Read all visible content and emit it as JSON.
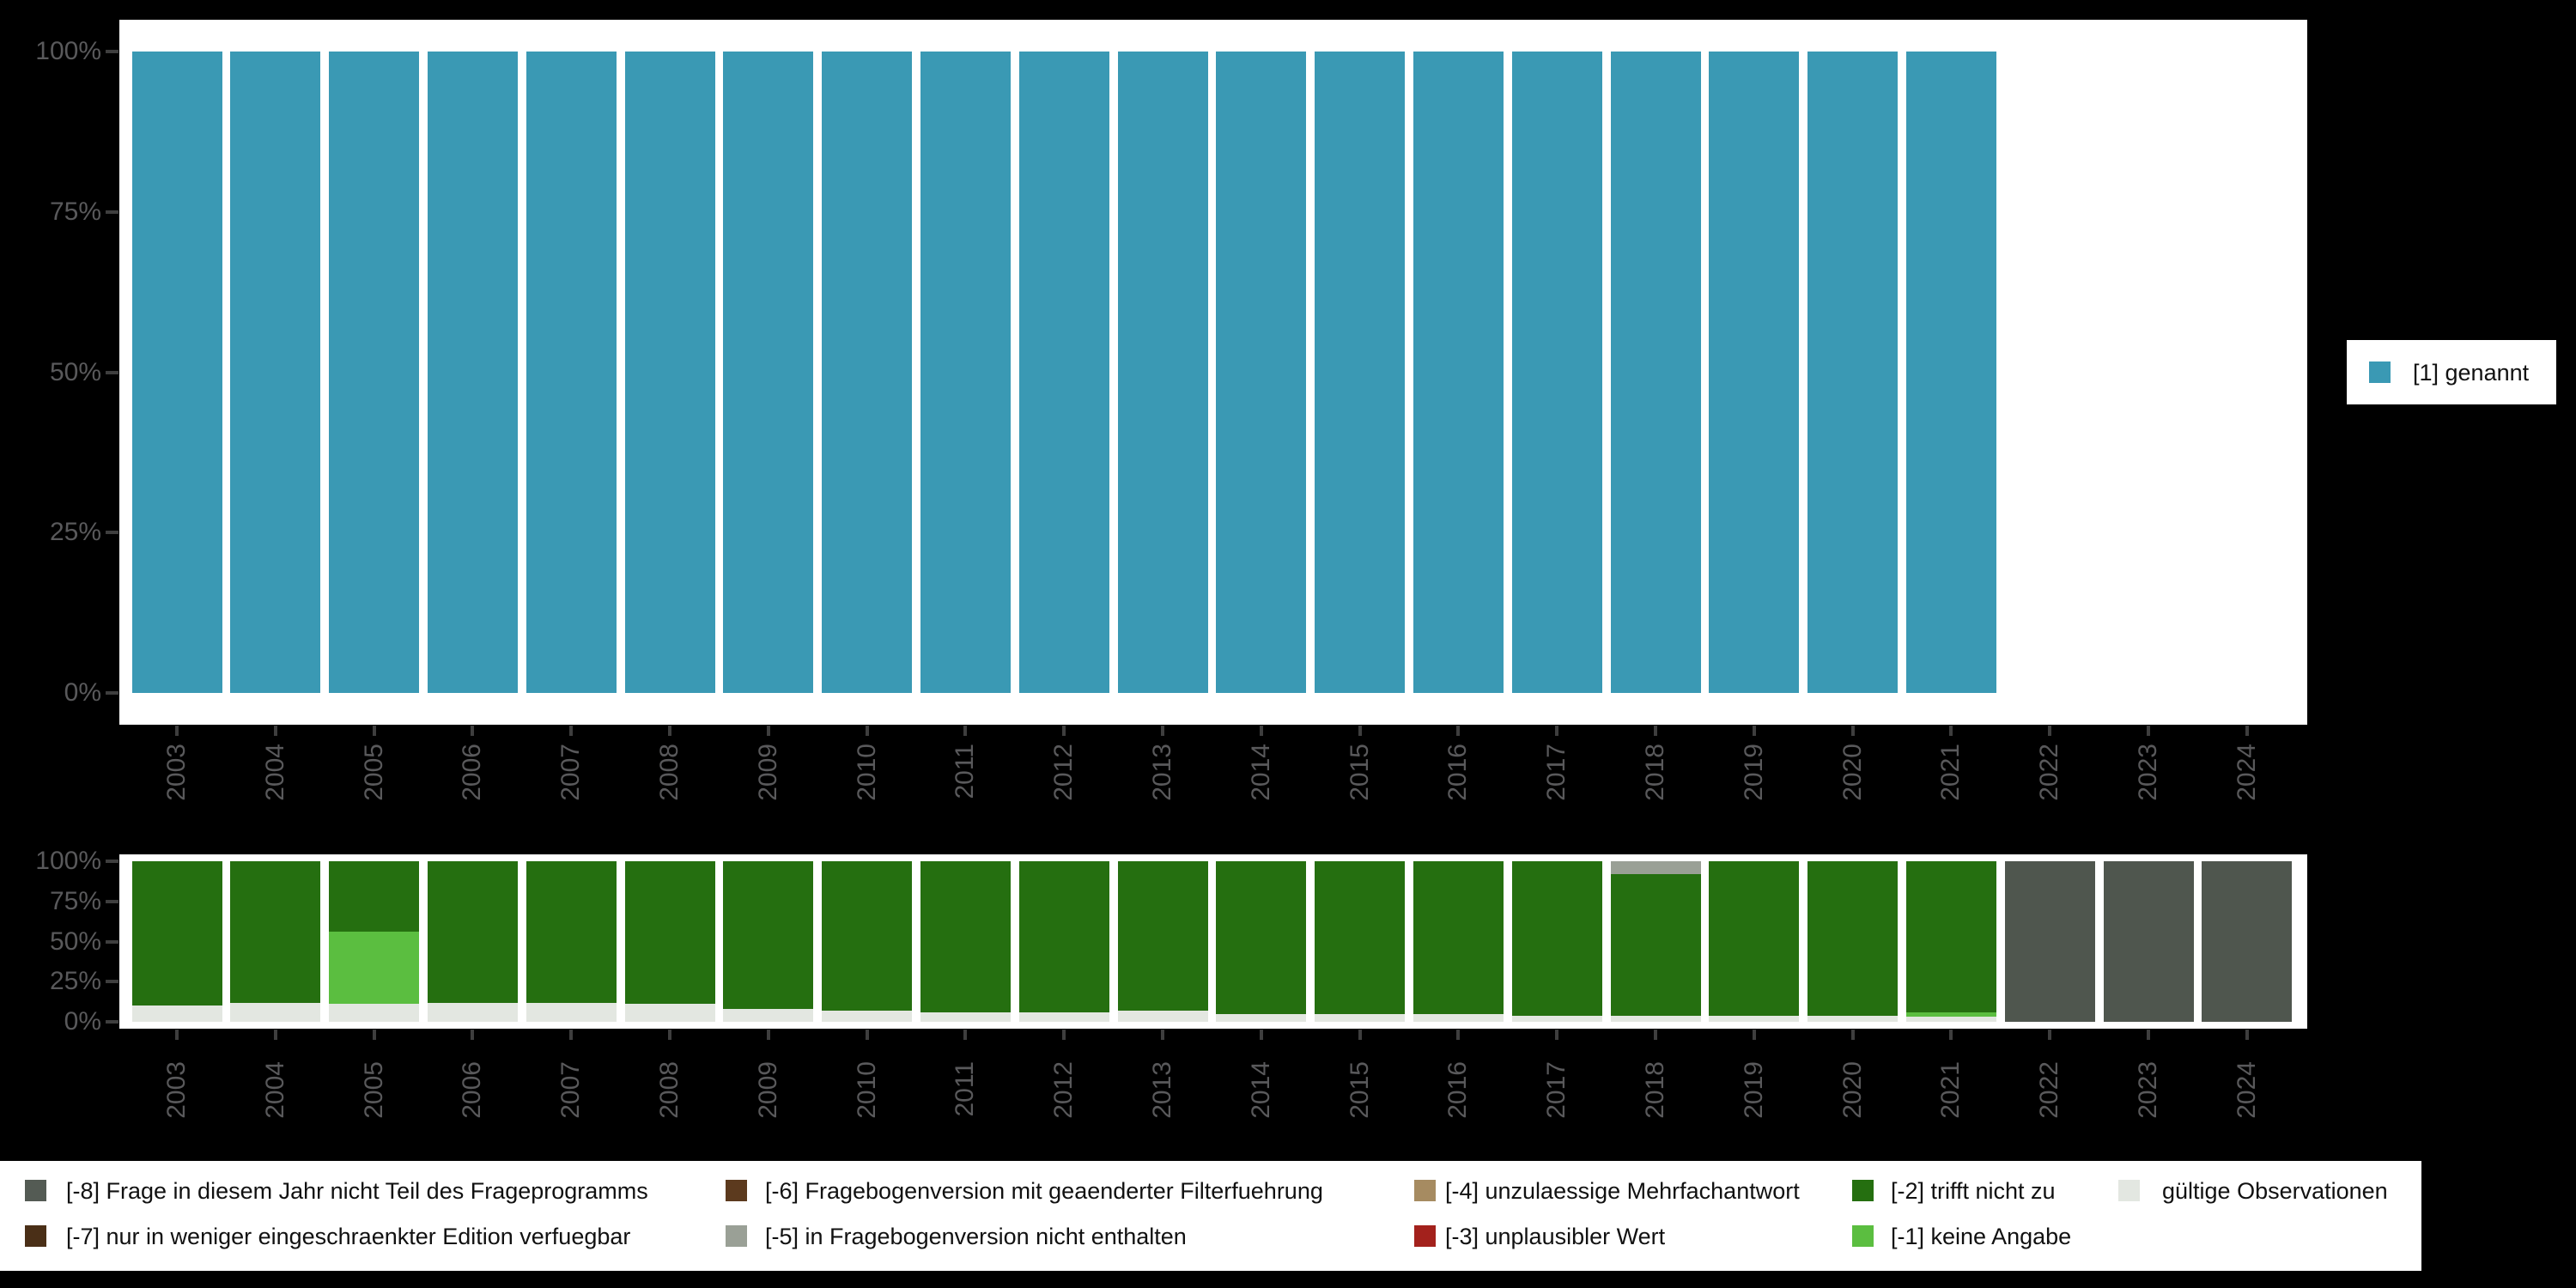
{
  "chart_data": [
    {
      "type": "bar",
      "title": "",
      "xlabel": "",
      "ylabel": "",
      "ylim": [
        0,
        100
      ],
      "grid": false,
      "y_ticks": [
        "100%",
        "75%",
        "50%",
        "25%",
        "0%"
      ],
      "categories": [
        "2003",
        "2004",
        "2005",
        "2006",
        "2007",
        "2008",
        "2009",
        "2010",
        "2011",
        "2012",
        "2013",
        "2014",
        "2015",
        "2016",
        "2017",
        "2018",
        "2019",
        "2020",
        "2021",
        "2022",
        "2023",
        "2024"
      ],
      "series": [
        {
          "name": "[1] genannt",
          "color": "#3A99B4",
          "values": [
            100,
            100,
            100,
            100,
            100,
            100,
            100,
            100,
            100,
            100,
            100,
            100,
            100,
            100,
            100,
            100,
            100,
            100,
            100,
            0,
            0,
            0
          ]
        }
      ],
      "legend_position": "right"
    },
    {
      "type": "stacked_bar",
      "title": "",
      "xlabel": "",
      "ylabel": "",
      "ylim": [
        0,
        100
      ],
      "grid": false,
      "y_ticks": [
        "100%",
        "75%",
        "50%",
        "25%",
        "0%"
      ],
      "categories": [
        "2003",
        "2004",
        "2005",
        "2006",
        "2007",
        "2008",
        "2009",
        "2010",
        "2011",
        "2012",
        "2013",
        "2014",
        "2015",
        "2016",
        "2017",
        "2018",
        "2019",
        "2020",
        "2021",
        "2022",
        "2023",
        "2024"
      ],
      "series": [
        {
          "name": "gültige Observationen",
          "color": "#E3E7E1",
          "values": [
            10,
            12,
            11,
            12,
            12,
            11,
            8,
            7,
            6,
            6,
            7,
            5,
            5,
            5,
            4,
            4,
            4,
            3.5,
            3,
            0,
            0,
            0
          ]
        },
        {
          "name": "[-1] keine Angabe",
          "color": "#5BBE40",
          "values": [
            0,
            0,
            45,
            0,
            0,
            0,
            0,
            0,
            0,
            0,
            0,
            0,
            0,
            0,
            0,
            0,
            0,
            0,
            3,
            0,
            0,
            0
          ]
        },
        {
          "name": "[-2] trifft nicht zu",
          "color": "#256F10",
          "values": [
            90,
            88,
            44,
            88,
            88,
            89,
            92,
            93,
            94,
            94,
            93,
            95,
            95,
            95,
            96,
            88,
            96,
            96.5,
            94,
            0,
            0,
            0
          ]
        },
        {
          "name": "[-5] in Fragebogenversion nicht enthalten",
          "color": "#9AA096",
          "values": [
            0,
            0,
            0,
            0,
            0,
            0,
            0,
            0,
            0,
            0,
            0,
            0,
            0,
            0,
            0,
            8,
            0,
            0,
            0,
            0,
            0,
            0
          ]
        },
        {
          "name": "[-8] Frage in diesem Jahr nicht Teil des Frageprogramms",
          "color": "#4F564E",
          "values": [
            0,
            0,
            0,
            0,
            0,
            0,
            0,
            0,
            0,
            0,
            0,
            0,
            0,
            0,
            0,
            0,
            0,
            0,
            0,
            100,
            100,
            100
          ]
        }
      ],
      "legend_position": "bottom"
    }
  ],
  "right_legend": {
    "label": "[1] genannt",
    "color": "#3A99B4"
  },
  "bottom_legend": {
    "items": [
      {
        "label": "[-8] Frage in diesem Jahr nicht Teil des Frageprogramms",
        "color": "#545B54"
      },
      {
        "label": "[-7] nur in weniger eingeschraenkter Edition verfuegbar",
        "color": "#4A2F17"
      },
      {
        "label": "[-6] Fragebogenversion mit geaenderter Filterfuehrung",
        "color": "#5C3A1E"
      },
      {
        "label": "[-5] in Fragebogenversion nicht enthalten",
        "color": "#9AA096"
      },
      {
        "label": "[-4] unzulaessige Mehrfachantwort",
        "color": "#A68B61"
      },
      {
        "label": "[-3] unplausibler Wert",
        "color": "#A3211C"
      },
      {
        "label": "[-2] trifft nicht zu",
        "color": "#256F10"
      },
      {
        "label": "[-1] keine Angabe",
        "color": "#5BBE40"
      },
      {
        "label": "gültige Observationen",
        "color": "#E3E7E1"
      }
    ]
  }
}
